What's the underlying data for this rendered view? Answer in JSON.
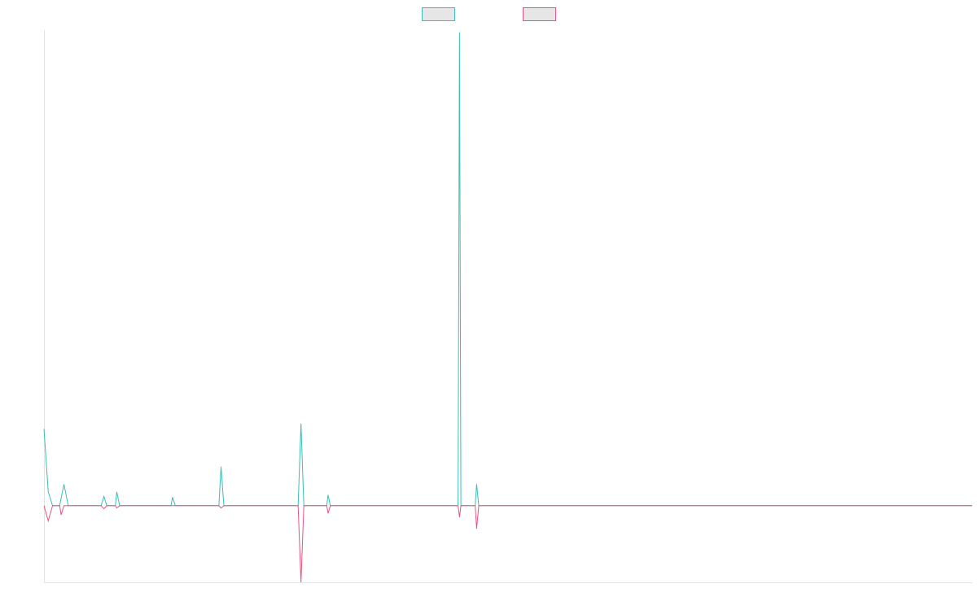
{
  "chart_data": {
    "type": "line",
    "title": "",
    "xlabel": "",
    "ylabel": "",
    "legend_position": "top-center",
    "grid": false,
    "x_range": [
      0,
      130
    ],
    "ylim": [
      -100,
      620
    ],
    "series": [
      {
        "color": "#3dbdb5",
        "fill": "#e6e6e6",
        "points": [
          [
            0,
            100
          ],
          [
            0.6,
            18
          ],
          [
            1.2,
            0
          ],
          [
            2.2,
            0
          ],
          [
            2.8,
            28
          ],
          [
            3.4,
            0
          ],
          [
            8,
            0
          ],
          [
            8.4,
            12
          ],
          [
            8.8,
            0
          ],
          [
            10,
            0
          ],
          [
            10.2,
            18
          ],
          [
            10.6,
            0
          ],
          [
            17.8,
            0
          ],
          [
            18,
            11
          ],
          [
            18.4,
            0
          ],
          [
            24.5,
            0
          ],
          [
            24.8,
            51
          ],
          [
            25.2,
            0
          ],
          [
            35.6,
            0
          ],
          [
            36,
            107
          ],
          [
            36.4,
            0
          ],
          [
            39.6,
            0
          ],
          [
            39.8,
            14
          ],
          [
            40.1,
            0
          ],
          [
            58,
            0
          ],
          [
            58.2,
            617
          ],
          [
            58.4,
            0
          ],
          [
            60.4,
            0
          ],
          [
            60.6,
            28
          ],
          [
            60.9,
            0
          ],
          [
            130,
            0
          ]
        ]
      },
      {
        "color": "#e8547e",
        "fill": "#e6e6e6",
        "points": [
          [
            0,
            0
          ],
          [
            0.6,
            -20
          ],
          [
            1.2,
            0
          ],
          [
            2.2,
            0
          ],
          [
            2.4,
            -12
          ],
          [
            2.8,
            0
          ],
          [
            8,
            0
          ],
          [
            8.4,
            -4
          ],
          [
            8.8,
            0
          ],
          [
            10,
            0
          ],
          [
            10.2,
            -3
          ],
          [
            10.6,
            0
          ],
          [
            24.5,
            0
          ],
          [
            24.8,
            -3
          ],
          [
            25.2,
            0
          ],
          [
            35.6,
            0
          ],
          [
            36,
            -100
          ],
          [
            36.4,
            0
          ],
          [
            39.6,
            0
          ],
          [
            39.8,
            -10
          ],
          [
            40.1,
            0
          ],
          [
            58,
            0
          ],
          [
            58.2,
            -15
          ],
          [
            58.4,
            0
          ],
          [
            60.4,
            0
          ],
          [
            60.6,
            -30
          ],
          [
            60.9,
            0
          ],
          [
            130,
            0
          ]
        ]
      }
    ]
  }
}
